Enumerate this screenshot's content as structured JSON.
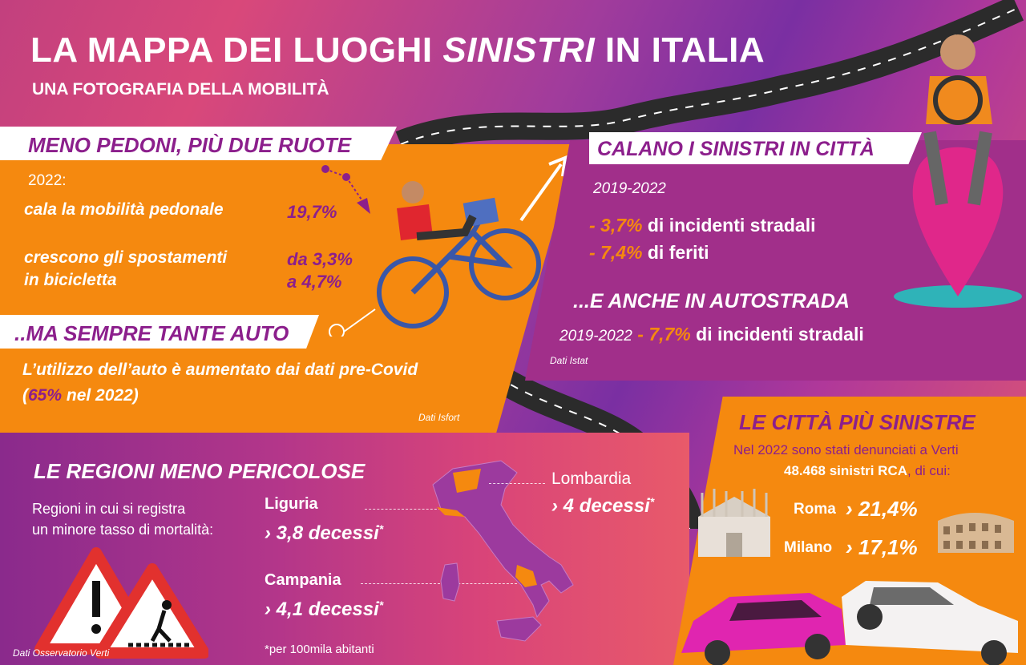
{
  "header": {
    "title_part1": "LA MAPPA DEI LUOGHI ",
    "title_italic": "SINISTRI",
    "title_part2": " IN ITALIA",
    "subtitle": "UNA FOTOGRAFIA DELLA MOBILITÀ"
  },
  "pedoni": {
    "heading": "MENO PEDONI, PIÙ DUE RUOTE",
    "year": "2022:",
    "row1_label": "cala la mobilità pedonale",
    "row1_value": "19,7%",
    "row2_label_l1": "crescono gli spostamenti",
    "row2_label_l2": "in bicicletta",
    "row2_value_l1": "da 3,3%",
    "row2_value_l2": "a 4,7%"
  },
  "auto": {
    "heading": "..MA SEMPRE TANTE AUTO",
    "line1": "L’utilizzo dell’auto è aumentato dai dati pre-Covid",
    "line2_open": "(",
    "line2_value": "65%",
    "line2_rest": " nel 2022)",
    "source": "Dati Isfort"
  },
  "citta": {
    "heading": "CALANO I SINISTRI IN CITTÀ",
    "period": "2019-2022",
    "stat1_value": "- 3,7%",
    "stat1_label": " di incidenti stradali",
    "stat2_value": "- 7,4%",
    "stat2_label": " di feriti",
    "highway_heading": "...E ANCHE IN AUTOSTRADA",
    "highway_period": "2019-2022",
    "highway_value": "- 7,7%",
    "highway_label": " di incidenti stradali",
    "source": "Dati Istat"
  },
  "regioni": {
    "heading": "LE REGIONI MENO PERICOLOSE",
    "desc_l1": "Regioni in cui si registra",
    "desc_l2": "un minore tasso di mortalità:",
    "items": [
      {
        "name": "Liguria",
        "value": "3,8 decessi",
        "star": "*"
      },
      {
        "name": "Campania",
        "value": "4,1 decessi",
        "star": "*"
      },
      {
        "name": "Lombardia",
        "value": "4 decessi",
        "star": "*"
      }
    ],
    "chevron": "›",
    "footnote": "*per 100mila abitanti",
    "source": "Dati Osservatorio Verti"
  },
  "sinistre": {
    "heading": "LE CITTÀ PIÙ SINISTRE",
    "intro_l1": "Nel 2022 sono stati denunciati a Verti",
    "intro_bold": "48.468 sinistri RCA",
    "intro_rest": ", di cui:",
    "cities": [
      {
        "name": "Roma",
        "value": "21,4%"
      },
      {
        "name": "Milano",
        "value": "17,1%"
      }
    ]
  },
  "colors": {
    "orange": "#f5890f",
    "purple": "#8c1f8c",
    "magenta": "#a12f8a"
  }
}
